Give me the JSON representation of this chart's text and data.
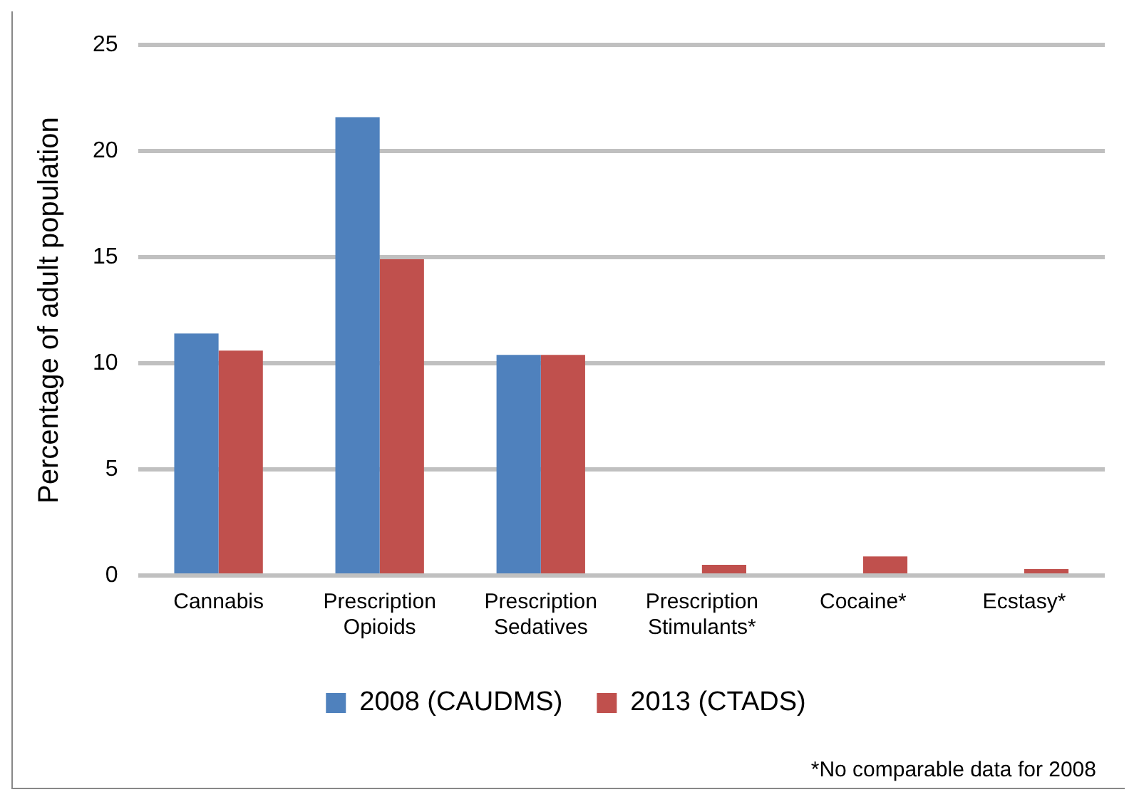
{
  "chart_data": {
    "type": "bar",
    "ylabel": "Percentage of adult population",
    "categories": [
      "Cannabis",
      "Prescription Opioids",
      "Prescription Sedatives",
      "Prescription Stimulants*",
      "Cocaine*",
      "Ecstasy*"
    ],
    "series": [
      {
        "name": "2008 (CAUDMS)",
        "color": "#4f81bd",
        "values": [
          11.4,
          21.6,
          10.4,
          null,
          null,
          null
        ]
      },
      {
        "name": "2013 (CTADS)",
        "color": "#c0504d",
        "values": [
          10.6,
          14.9,
          10.4,
          0.5,
          0.9,
          0.3
        ]
      }
    ],
    "ylim": [
      0,
      25
    ],
    "yticks": [
      0,
      5,
      10,
      15,
      20,
      25
    ],
    "grid": "y",
    "legend": "bottom",
    "annotations": [
      "*No comparable data for 2008"
    ]
  }
}
